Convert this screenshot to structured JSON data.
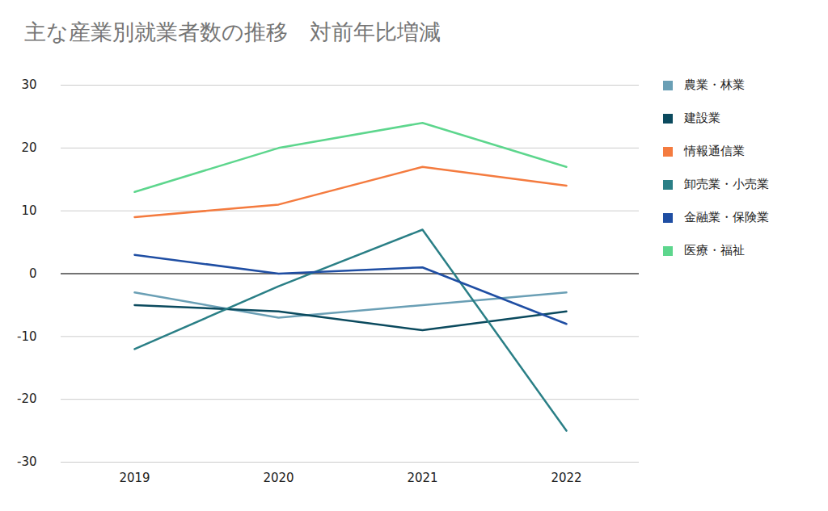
{
  "chart_data": {
    "type": "line",
    "title": "主な産業別就業者数の推移　対前年比増減",
    "categories": [
      "2019",
      "2020",
      "2021",
      "2022"
    ],
    "series": [
      {
        "name": "農業・林業",
        "color": "#6a9fb5",
        "values": [
          -3,
          -7,
          -5,
          -3
        ]
      },
      {
        "name": "建設業",
        "color": "#0b4a5e",
        "values": [
          -5,
          -6,
          -9,
          -6
        ]
      },
      {
        "name": "情報通信業",
        "color": "#f47b3f",
        "values": [
          9,
          11,
          17,
          14
        ]
      },
      {
        "name": "卸売業・小売業",
        "color": "#2a7f86",
        "values": [
          -12,
          -2,
          7,
          -25
        ]
      },
      {
        "name": "金融業・保険業",
        "color": "#1f4ea3",
        "values": [
          3,
          0,
          1,
          -8
        ]
      },
      {
        "name": "医療・福祉",
        "color": "#5dd68d",
        "values": [
          13,
          20,
          24,
          17
        ]
      }
    ],
    "ylim": [
      -30,
      30
    ],
    "yticks": [
      -30,
      -20,
      -10,
      0,
      10,
      20,
      30
    ],
    "grid": true,
    "legend": "right"
  }
}
